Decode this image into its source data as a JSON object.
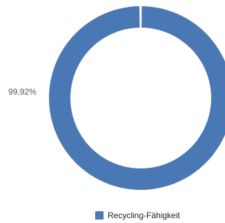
{
  "chart_data": {
    "type": "pie",
    "variant": "donut",
    "slices": [
      {
        "label": "Recycling-Fähigkeit",
        "value": 99.92,
        "value_label": "99,92%",
        "color": "#4a78b4"
      },
      {
        "label": "",
        "value": 0.08,
        "color": "#4a78b4"
      }
    ],
    "legend": {
      "placement": "bottom-center",
      "entries": [
        {
          "name": "Recycling-Fähigkeit",
          "color": "#4a78b4"
        }
      ]
    }
  }
}
